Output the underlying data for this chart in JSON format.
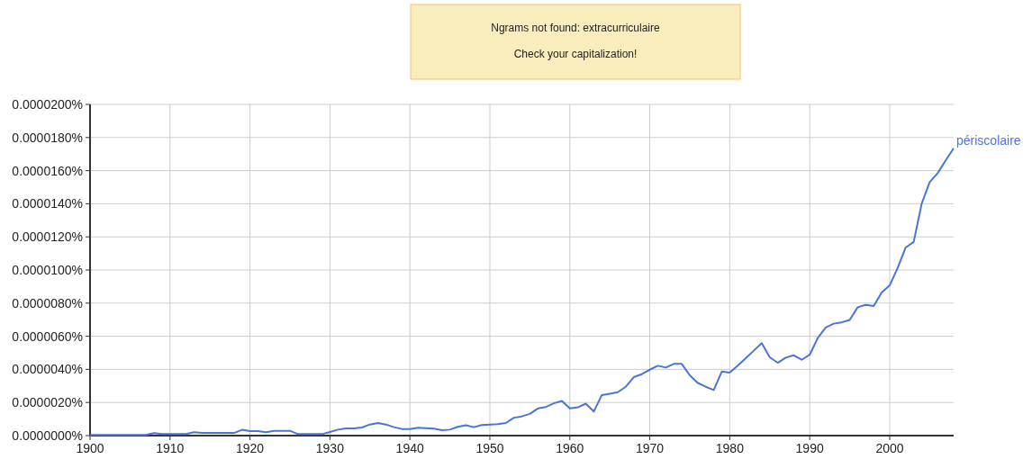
{
  "chart_data": {
    "type": "line",
    "annotations": [
      "Ngrams not found: extracurriculaire",
      "Check your capitalization!"
    ],
    "x": [
      1900,
      1901,
      1902,
      1903,
      1904,
      1905,
      1906,
      1907,
      1908,
      1909,
      1910,
      1911,
      1912,
      1913,
      1914,
      1915,
      1916,
      1917,
      1918,
      1919,
      1920,
      1921,
      1922,
      1923,
      1924,
      1925,
      1926,
      1927,
      1928,
      1929,
      1930,
      1931,
      1932,
      1933,
      1934,
      1935,
      1936,
      1937,
      1938,
      1939,
      1940,
      1941,
      1942,
      1943,
      1944,
      1945,
      1946,
      1947,
      1948,
      1949,
      1950,
      1951,
      1952,
      1953,
      1954,
      1955,
      1956,
      1957,
      1958,
      1959,
      1960,
      1961,
      1962,
      1963,
      1964,
      1965,
      1966,
      1967,
      1968,
      1969,
      1970,
      1971,
      1972,
      1973,
      1974,
      1975,
      1976,
      1977,
      1978,
      1979,
      1980,
      1981,
      1982,
      1983,
      1984,
      1985,
      1986,
      1987,
      1988,
      1989,
      1990,
      1991,
      1992,
      1993,
      1994,
      1995,
      1996,
      1997,
      1998,
      1999,
      2000,
      2001,
      2002,
      2003,
      2004,
      2005,
      2006,
      2007,
      2008
    ],
    "series": [
      {
        "name": "périscolaire",
        "color": "#4a74d8",
        "values": [
          4e-08,
          4e-08,
          4e-08,
          4e-08,
          4e-08,
          4e-08,
          4e-08,
          4e-08,
          1.5e-07,
          1e-07,
          1e-07,
          1e-07,
          1e-07,
          2e-07,
          1.6e-07,
          1.6e-07,
          1.6e-07,
          1.6e-07,
          1.6e-07,
          3.5e-07,
          2.7e-07,
          2.7e-07,
          2e-07,
          2.9e-07,
          2.9e-07,
          2.9e-07,
          9e-08,
          9e-08,
          9e-08,
          9e-08,
          2.2e-07,
          3.6e-07,
          4.4e-07,
          4.4e-07,
          4.9e-07,
          6.7e-07,
          7.6e-07,
          6.7e-07,
          5.1e-07,
          4e-07,
          4e-07,
          4.7e-07,
          4.5e-07,
          4.2e-07,
          3.3e-07,
          3.6e-07,
          5.3e-07,
          6.2e-07,
          5.1e-07,
          6.4e-07,
          6.7e-07,
          6.9e-07,
          7.6e-07,
          1.08e-06,
          1.16e-06,
          1.31e-06,
          1.64e-06,
          1.73e-06,
          1.95e-06,
          2.09e-06,
          1.64e-06,
          1.71e-06,
          1.93e-06,
          1.45e-06,
          2.45e-06,
          2.53e-06,
          2.62e-06,
          2.95e-06,
          3.53e-06,
          3.71e-06,
          3.98e-06,
          4.22e-06,
          4.11e-06,
          4.33e-06,
          4.33e-06,
          3.64e-06,
          3.18e-06,
          2.95e-06,
          2.75e-06,
          3.87e-06,
          3.8e-06,
          4.22e-06,
          4.67e-06,
          5.13e-06,
          5.58e-06,
          4.73e-06,
          4.4e-06,
          4.71e-06,
          4.85e-06,
          4.58e-06,
          4.88e-06,
          5.89e-06,
          6.53e-06,
          6.76e-06,
          6.84e-06,
          6.98e-06,
          7.75e-06,
          7.89e-06,
          7.82e-06,
          8.64e-06,
          9.07e-06,
          1.013e-05,
          1.136e-05,
          1.169e-05,
          1.4e-05,
          1.531e-05,
          1.585e-05,
          1.662e-05,
          1.735e-05
        ]
      }
    ],
    "xlim": [
      1900,
      2008
    ],
    "xticks": [
      1900,
      1910,
      1920,
      1930,
      1940,
      1950,
      1960,
      1970,
      1980,
      1990,
      2000
    ],
    "ylim": [
      0,
      2e-05
    ],
    "yticks": [
      {
        "value": 0,
        "label": "0.0000000%"
      },
      {
        "value": 2e-06,
        "label": "0.0000020%"
      },
      {
        "value": 4e-06,
        "label": "0.0000040%"
      },
      {
        "value": 6e-06,
        "label": "0.0000060%"
      },
      {
        "value": 8e-06,
        "label": "0.0000080%"
      },
      {
        "value": 1e-05,
        "label": "0.0000100%"
      },
      {
        "value": 1.2e-05,
        "label": "0.0000120%"
      },
      {
        "value": 1.4e-05,
        "label": "0.0000140%"
      },
      {
        "value": 1.6e-05,
        "label": "0.0000160%"
      },
      {
        "value": 1.8e-05,
        "label": "0.0000180%"
      },
      {
        "value": 2e-05,
        "label": "0.0000200%"
      }
    ],
    "grid": true,
    "legend": false
  }
}
